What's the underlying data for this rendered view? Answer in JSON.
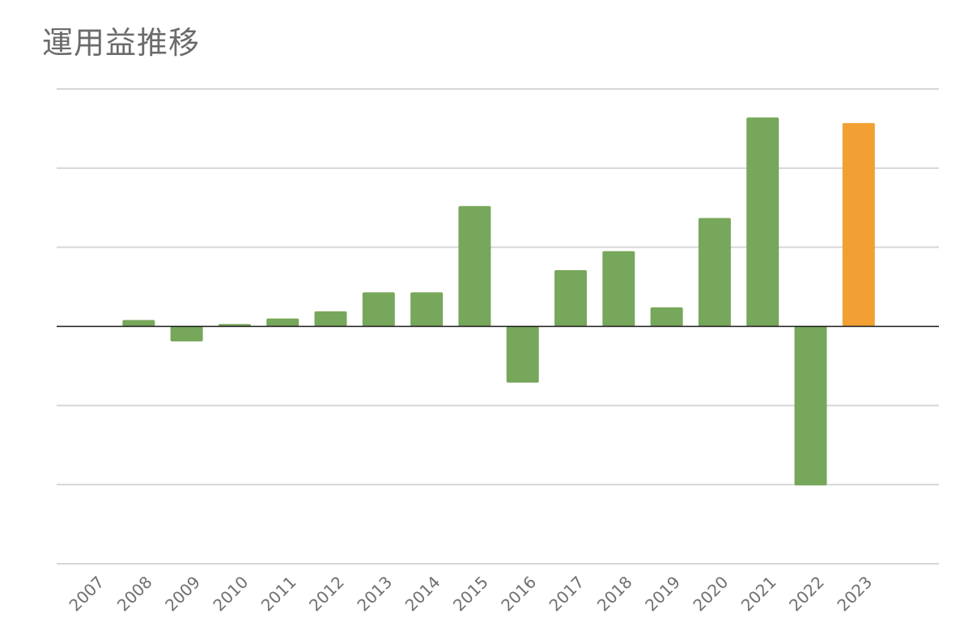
{
  "chart_data": {
    "type": "bar",
    "title": "運用益推移",
    "xlabel": "",
    "ylabel": "",
    "categories": [
      "2007",
      "2008",
      "2009",
      "2010",
      "2011",
      "2012",
      "2013",
      "2014",
      "2015",
      "2016",
      "2017",
      "2018",
      "2019",
      "2020",
      "2021",
      "2022",
      "2023"
    ],
    "values": [
      0,
      8,
      -19,
      3,
      10,
      19,
      43,
      43,
      152,
      -71,
      71,
      95,
      24,
      137,
      264,
      -201,
      257
    ],
    "ylim": [
      -300,
      300
    ],
    "grid": true,
    "colors": {
      "bar": "#77a75a",
      "highlight": "#f2a033",
      "gridline": "#d6d6d6",
      "zeroline": "#1a1a1a"
    },
    "highlight_categories": [
      "2023"
    ]
  }
}
